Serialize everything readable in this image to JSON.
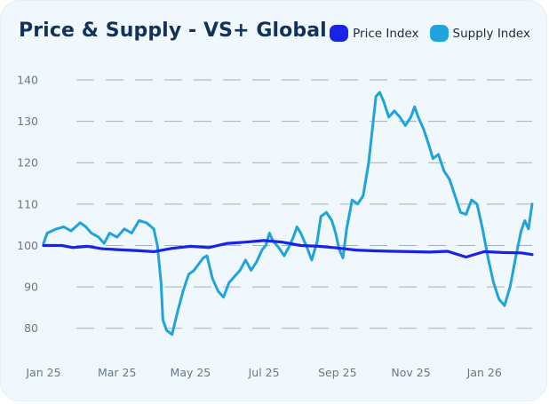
{
  "chart_data": {
    "type": "line",
    "title": "Price & Supply - VS+ Global",
    "xlabel": "",
    "ylabel": "",
    "ylim": [
      75,
      143
    ],
    "y_ticks": [
      80,
      90,
      100,
      110,
      120,
      130,
      140
    ],
    "x_tick_labels": [
      "Jan 25",
      "Mar 25",
      "May 25",
      "Jul 25",
      "Sep 25",
      "Nov 25",
      "Jan 26"
    ],
    "x_range_months": [
      0,
      13.3
    ],
    "grid": "horizontal-dashed",
    "legend_position": "top-right",
    "series": [
      {
        "name": "Price Index",
        "color": "#1a22e6",
        "points": [
          [
            0,
            100
          ],
          [
            0.5,
            100
          ],
          [
            0.8,
            99.5
          ],
          [
            1.2,
            99.8
          ],
          [
            1.6,
            99.2
          ],
          [
            2.0,
            99
          ],
          [
            2.5,
            98.8
          ],
          [
            3.0,
            98.5
          ],
          [
            3.5,
            99.3
          ],
          [
            4.0,
            99.8
          ],
          [
            4.5,
            99.5
          ],
          [
            5.0,
            100.5
          ],
          [
            5.5,
            100.8
          ],
          [
            6.0,
            101.2
          ],
          [
            6.5,
            100.8
          ],
          [
            7.0,
            100
          ],
          [
            7.5,
            99.8
          ],
          [
            8.0,
            99.4
          ],
          [
            8.5,
            98.9
          ],
          [
            9.0,
            98.7
          ],
          [
            9.5,
            98.6
          ],
          [
            10.0,
            98.5
          ],
          [
            10.5,
            98.4
          ],
          [
            11.0,
            98.6
          ],
          [
            11.5,
            97.2
          ],
          [
            12.0,
            98.5
          ],
          [
            12.5,
            98.3
          ],
          [
            13.0,
            98.2
          ],
          [
            13.3,
            97.8
          ]
        ]
      },
      {
        "name": "Supply Index",
        "color": "#1ea3db",
        "points": [
          [
            0,
            100.5
          ],
          [
            0.1,
            103
          ],
          [
            0.35,
            104
          ],
          [
            0.55,
            104.5
          ],
          [
            0.75,
            103.5
          ],
          [
            1.0,
            105.5
          ],
          [
            1.15,
            104.5
          ],
          [
            1.3,
            103
          ],
          [
            1.5,
            102
          ],
          [
            1.65,
            100.5
          ],
          [
            1.8,
            103
          ],
          [
            2.0,
            102
          ],
          [
            2.2,
            104
          ],
          [
            2.4,
            103
          ],
          [
            2.6,
            106
          ],
          [
            2.8,
            105.5
          ],
          [
            3.0,
            104
          ],
          [
            3.1,
            100
          ],
          [
            3.2,
            91
          ],
          [
            3.25,
            82
          ],
          [
            3.35,
            79.5
          ],
          [
            3.5,
            78.5
          ],
          [
            3.65,
            84
          ],
          [
            3.8,
            89
          ],
          [
            3.95,
            93
          ],
          [
            4.1,
            94
          ],
          [
            4.35,
            97
          ],
          [
            4.45,
            97.5
          ],
          [
            4.6,
            92
          ],
          [
            4.75,
            89
          ],
          [
            4.9,
            87.5
          ],
          [
            5.05,
            91
          ],
          [
            5.2,
            92.5
          ],
          [
            5.35,
            94
          ],
          [
            5.5,
            96.5
          ],
          [
            5.65,
            94
          ],
          [
            5.8,
            96
          ],
          [
            5.95,
            99
          ],
          [
            6.05,
            100
          ],
          [
            6.15,
            103
          ],
          [
            6.25,
            101
          ],
          [
            6.4,
            99.5
          ],
          [
            6.55,
            97.5
          ],
          [
            6.7,
            100
          ],
          [
            6.8,
            102
          ],
          [
            6.9,
            104.5
          ],
          [
            7.0,
            103
          ],
          [
            7.15,
            100
          ],
          [
            7.3,
            96.5
          ],
          [
            7.45,
            101
          ],
          [
            7.55,
            107
          ],
          [
            7.7,
            108
          ],
          [
            7.85,
            106
          ],
          [
            7.95,
            103
          ],
          [
            8.05,
            99
          ],
          [
            8.15,
            97
          ],
          [
            8.25,
            104
          ],
          [
            8.4,
            111
          ],
          [
            8.55,
            110
          ],
          [
            8.7,
            112
          ],
          [
            8.85,
            120
          ],
          [
            8.95,
            128
          ],
          [
            9.05,
            136
          ],
          [
            9.15,
            137
          ],
          [
            9.25,
            135
          ],
          [
            9.4,
            131
          ],
          [
            9.55,
            132.5
          ],
          [
            9.7,
            131
          ],
          [
            9.85,
            129
          ],
          [
            10.0,
            131
          ],
          [
            10.1,
            133.5
          ],
          [
            10.2,
            131
          ],
          [
            10.35,
            128
          ],
          [
            10.5,
            124
          ],
          [
            10.6,
            121
          ],
          [
            10.75,
            122
          ],
          [
            10.9,
            118
          ],
          [
            11.05,
            116
          ],
          [
            11.2,
            112
          ],
          [
            11.35,
            108
          ],
          [
            11.5,
            107.5
          ],
          [
            11.65,
            111
          ],
          [
            11.8,
            110
          ],
          [
            11.95,
            104
          ],
          [
            12.1,
            97
          ],
          [
            12.25,
            91
          ],
          [
            12.4,
            87
          ],
          [
            12.55,
            85.5
          ],
          [
            12.7,
            90
          ],
          [
            12.85,
            97
          ],
          [
            13.0,
            103.5
          ],
          [
            13.1,
            106
          ],
          [
            13.2,
            104
          ],
          [
            13.3,
            110
          ]
        ]
      }
    ]
  },
  "legend": {
    "price_label": "Price Index",
    "supply_label": "Supply Index"
  }
}
